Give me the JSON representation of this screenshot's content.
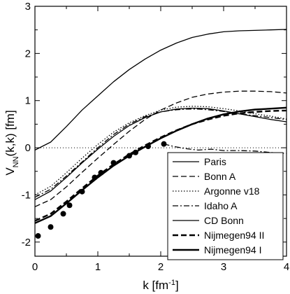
{
  "chart_data": {
    "type": "line",
    "xlabel": {
      "main": "k [fm",
      "sup": "-1",
      "tail": "]"
    },
    "ylabel": {
      "main": "V",
      "sub": "NN",
      "tail": "(k,k) [fm]"
    },
    "xlim": [
      0,
      4
    ],
    "ylim": [
      -2.3,
      3
    ],
    "x_ticks": [
      0,
      1,
      2,
      3,
      4
    ],
    "y_ticks": [
      -2,
      -1,
      0,
      1,
      2,
      3
    ],
    "grid": false,
    "legend_position": "bottom-right",
    "series": [
      {
        "name": "Paris",
        "style": "solid",
        "width": 1.3,
        "x": [
          0,
          0.25,
          0.5,
          0.75,
          1.0,
          1.25,
          1.5,
          1.75,
          2.0,
          2.25,
          2.5,
          2.75,
          3.0,
          3.25,
          3.5,
          3.75,
          4.0
        ],
        "y": [
          -0.05,
          0.12,
          0.45,
          0.8,
          1.1,
          1.4,
          1.66,
          1.88,
          2.07,
          2.22,
          2.34,
          2.41,
          2.46,
          2.48,
          2.49,
          2.5,
          2.51
        ]
      },
      {
        "name": "Bonn A",
        "style": "dashed",
        "width": 1.3,
        "x": [
          0,
          0.25,
          0.5,
          0.75,
          1.0,
          1.25,
          1.5,
          1.75,
          2.0,
          2.25,
          2.5,
          2.75,
          3.0,
          3.25,
          3.5,
          3.75,
          4.0
        ],
        "y": [
          -1.25,
          -1.1,
          -0.83,
          -0.52,
          -0.22,
          0.07,
          0.35,
          0.6,
          0.8,
          0.95,
          1.07,
          1.14,
          1.18,
          1.2,
          1.2,
          1.19,
          1.16
        ]
      },
      {
        "name": "Argonne v18",
        "style": "dotted",
        "width": 1.3,
        "x": [
          0,
          0.25,
          0.5,
          0.75,
          1.0,
          1.25,
          1.5,
          1.75,
          2.0,
          2.25,
          2.5,
          2.75,
          3.0,
          3.25,
          3.5,
          3.75,
          4.0
        ],
        "y": [
          -1.0,
          -0.82,
          -0.53,
          -0.22,
          0.07,
          0.33,
          0.53,
          0.68,
          0.8,
          0.86,
          0.88,
          0.87,
          0.83,
          0.78,
          0.72,
          0.67,
          0.61
        ]
      },
      {
        "name": "Idaho A",
        "style": "dashdot",
        "width": 1.3,
        "x": [
          0,
          0.25,
          0.5,
          0.75,
          1.0,
          1.25,
          1.5,
          1.75,
          2.0,
          2.2,
          2.4,
          2.6,
          2.8,
          3.0,
          3.25,
          3.5,
          3.75,
          4.0
        ],
        "y": [
          -1.05,
          -0.88,
          -0.6,
          -0.3,
          0.0,
          0.28,
          0.5,
          0.66,
          0.76,
          0.8,
          0.82,
          0.82,
          0.8,
          0.77,
          0.72,
          0.68,
          0.64,
          0.6
        ]
      },
      {
        "name": "CD Bonn",
        "style": "solid",
        "width": 1.3,
        "x": [
          0,
          0.25,
          0.5,
          0.75,
          1.0,
          1.25,
          1.5,
          1.75,
          2.0,
          2.25,
          2.5,
          2.75,
          3.0,
          3.25,
          3.5,
          3.75,
          4.0
        ],
        "y": [
          -1.1,
          -0.92,
          -0.63,
          -0.32,
          -0.03,
          0.24,
          0.47,
          0.64,
          0.76,
          0.82,
          0.84,
          0.83,
          0.78,
          0.72,
          0.66,
          0.6,
          0.55
        ]
      },
      {
        "name": "Nijmegen94 II",
        "style": "dashed",
        "width": 2.4,
        "x": [
          0,
          0.25,
          0.5,
          0.75,
          1.0,
          1.25,
          1.5,
          1.75,
          2.0,
          2.25,
          2.5,
          2.75,
          3.0,
          3.25,
          3.5,
          3.75,
          4.0
        ],
        "y": [
          -1.55,
          -1.4,
          -1.14,
          -0.86,
          -0.59,
          -0.35,
          -0.14,
          0.05,
          0.22,
          0.37,
          0.5,
          0.6,
          0.68,
          0.73,
          0.76,
          0.78,
          0.79
        ]
      },
      {
        "name": "Nijmegen94 I",
        "style": "solid",
        "width": 2.4,
        "x": [
          0,
          0.25,
          0.5,
          0.75,
          1.0,
          1.25,
          1.5,
          1.75,
          2.0,
          2.25,
          2.5,
          2.75,
          3.0,
          3.25,
          3.5,
          3.75,
          4.0
        ],
        "y": [
          -1.6,
          -1.45,
          -1.18,
          -0.9,
          -0.63,
          -0.38,
          -0.17,
          0.02,
          0.2,
          0.36,
          0.5,
          0.62,
          0.71,
          0.77,
          0.81,
          0.83,
          0.85
        ]
      }
    ],
    "points": {
      "x": [
        0.05,
        0.25,
        0.45,
        0.55,
        0.75,
        0.95,
        1.05,
        1.25,
        1.5,
        1.6,
        1.8,
        2.05
      ],
      "y": [
        -1.87,
        -1.68,
        -1.4,
        -1.22,
        -0.93,
        -0.63,
        -0.53,
        -0.32,
        -0.17,
        -0.1,
        0.03,
        0.08
      ]
    },
    "idaho_tail": {
      "x": [
        2.05,
        2.2,
        2.4,
        2.6,
        2.8,
        3.0,
        3.25,
        3.5,
        3.75,
        4.0
      ],
      "y": [
        0.08,
        0.03,
        -0.02,
        -0.05,
        -0.03,
        -0.06,
        -0.06,
        -0.07,
        -0.1,
        -0.12
      ]
    }
  }
}
